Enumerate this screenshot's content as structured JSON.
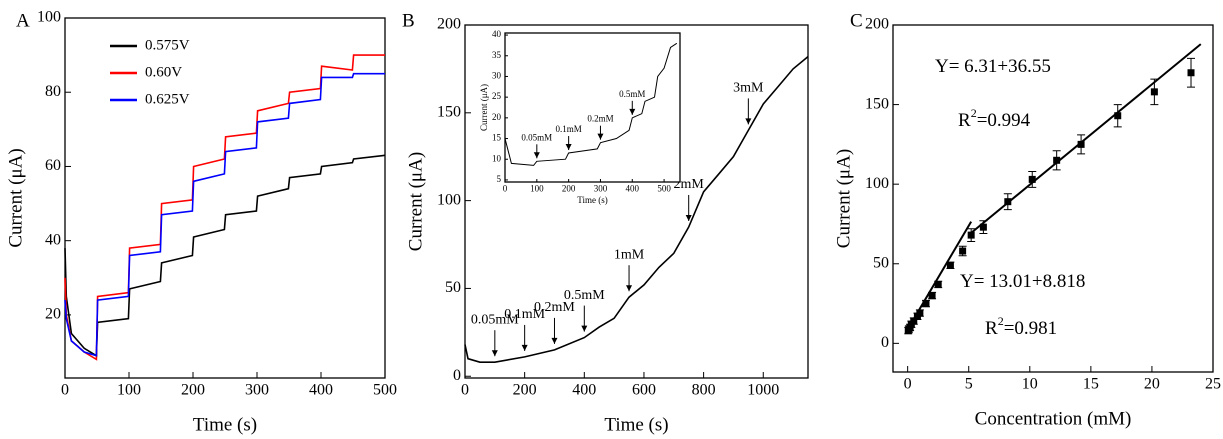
{
  "chart_data": [
    {
      "type": "line",
      "label": "A",
      "xlabel": "Time (s)",
      "ylabel": "Current (μA)",
      "x": [
        0,
        2,
        10,
        30,
        49,
        51,
        99,
        101,
        149,
        151,
        199,
        201,
        249,
        251,
        299,
        301,
        349,
        351,
        399,
        401,
        449,
        451,
        500
      ],
      "xlim": [
        0,
        500
      ],
      "xticks": [
        0,
        100,
        200,
        300,
        400,
        500
      ],
      "ylim": [
        3,
        100
      ],
      "yticks": [
        20,
        40,
        60,
        80,
        100
      ],
      "legend": "upper left",
      "series": [
        {
          "name": "0.575V",
          "color": "#000000",
          "values": [
            38,
            25,
            15,
            11,
            9,
            18,
            19,
            27,
            29,
            34,
            36,
            41,
            43,
            47,
            48,
            52,
            54,
            57,
            58,
            60,
            61,
            62,
            63
          ]
        },
        {
          "name": "0.60V",
          "color": "#ff0000",
          "values": [
            30,
            20,
            13,
            10,
            8,
            25,
            26,
            38,
            39,
            50,
            51,
            60,
            62,
            68,
            69,
            75,
            77,
            80,
            81,
            87,
            86,
            90,
            90
          ]
        },
        {
          "name": "0.625V",
          "color": "#0000ff",
          "values": [
            24,
            19,
            13,
            10,
            9,
            24,
            25,
            36,
            37,
            47,
            48,
            56,
            58,
            64,
            65,
            72,
            73,
            77,
            78,
            84,
            84,
            85,
            85
          ]
        }
      ]
    },
    {
      "type": "line",
      "label": "B",
      "xlabel": "Time (s)",
      "ylabel": "Current (μA)",
      "x": [
        0,
        10,
        50,
        100,
        200,
        300,
        400,
        450,
        500,
        550,
        600,
        650,
        700,
        750,
        800,
        850,
        900,
        950,
        1000,
        1050,
        1100,
        1150
      ],
      "xlim": [
        0,
        1150
      ],
      "xticks": [
        0,
        200,
        400,
        600,
        800,
        1000
      ],
      "ylim": [
        -1,
        200
      ],
      "yticks": [
        0,
        50,
        100,
        150,
        200
      ],
      "series": [
        {
          "color": "#000000",
          "values": [
            18,
            10,
            8,
            8,
            11,
            15,
            22,
            28,
            33,
            45,
            52,
            62,
            70,
            85,
            105,
            115,
            125,
            140,
            155,
            165,
            175,
            182
          ]
        }
      ],
      "annotations": [
        {
          "text": "0.05mM",
          "x": 100
        },
        {
          "text": "0.1mM",
          "x": 200
        },
        {
          "text": "0.2mM",
          "x": 300
        },
        {
          "text": "0.5mM",
          "x": 400
        },
        {
          "text": "1mM",
          "x": 550
        },
        {
          "text": "2mM",
          "x": 750
        },
        {
          "text": "3mM",
          "x": 950
        }
      ]
    },
    {
      "type": "line",
      "xlabel": "Time (s)",
      "ylabel": "Current (μA)",
      "x": [
        0,
        20,
        90,
        100,
        190,
        200,
        290,
        300,
        350,
        390,
        400,
        430,
        440,
        470,
        480,
        500,
        520,
        540
      ],
      "xlim": [
        0,
        550
      ],
      "xticks": [
        0,
        100,
        200,
        300,
        400,
        500
      ],
      "ylim": [
        4.5,
        40.5
      ],
      "yticks": [
        5,
        10,
        15,
        20,
        25,
        30,
        35,
        40
      ],
      "series": [
        {
          "color": "#000000",
          "values": [
            15,
            9,
            8.5,
            9.5,
            10,
            11.5,
            12.5,
            14,
            15,
            17,
            20,
            21,
            24,
            25,
            30,
            32,
            37,
            38
          ]
        }
      ],
      "annotations": [
        {
          "text": "0.05mM",
          "x": 100
        },
        {
          "text": "0.1mM",
          "x": 200
        },
        {
          "text": "0.2mM",
          "x": 300
        },
        {
          "text": "0.5mM",
          "x": 400
        }
      ]
    },
    {
      "type": "scatter",
      "label": "C",
      "xlabel": "Concentration (mM)",
      "ylabel": "Current (μA)",
      "x": [
        0.05,
        0.1,
        0.2,
        0.3,
        0.5,
        0.8,
        1,
        1.5,
        2,
        2.5,
        3.5,
        4.5,
        5.2,
        6.2,
        8.2,
        10.2,
        12.2,
        14.2,
        17.2,
        20.2,
        23.2
      ],
      "values": [
        8,
        9,
        10,
        12,
        14,
        17,
        19,
        25,
        30,
        37,
        49,
        58,
        68,
        73,
        89,
        103,
        115,
        125,
        143,
        158,
        170
      ],
      "errors": [
        2,
        2,
        2,
        2,
        2,
        2,
        2,
        2,
        2,
        2,
        2,
        3,
        4,
        4,
        5,
        5,
        6,
        6,
        7,
        8,
        9
      ],
      "color": "#000000",
      "xlim": [
        -1.2,
        25
      ],
      "xticks": [
        0,
        5,
        10,
        15,
        20,
        25
      ],
      "ylim": [
        -18,
        200
      ],
      "yticks": [
        0,
        50,
        100,
        150,
        200
      ],
      "fits": [
        {
          "color": "#000000",
          "x": [
            0,
            5.2
          ],
          "values": [
            8.818,
            76.5
          ]
        },
        {
          "color": "#000000",
          "x": [
            5.2,
            24
          ],
          "values": [
            69.4,
            188
          ]
        }
      ],
      "equations": [
        {
          "text": "Y= 6.31+36.55"
        },
        {
          "text": "R",
          "sup": "2",
          "rest": "=0.994"
        },
        {
          "text": "Y= 13.01+8.818"
        },
        {
          "text": "R",
          "sup": "2",
          "rest": "=0.981"
        }
      ]
    }
  ]
}
